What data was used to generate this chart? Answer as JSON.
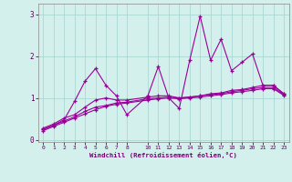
{
  "xlabel": "Windchill (Refroidissement éolien,°C)",
  "bg_color": "#d4f0ec",
  "line_color": "#990099",
  "grid_color": "#aad8d4",
  "xmin": -0.5,
  "xmax": 23.5,
  "ymin": -0.05,
  "ymax": 3.25,
  "yticks": [
    0,
    1,
    2,
    3
  ],
  "xticks": [
    0,
    1,
    2,
    3,
    4,
    5,
    6,
    7,
    8,
    10,
    11,
    12,
    13,
    14,
    15,
    16,
    17,
    18,
    19,
    20,
    21,
    22,
    23
  ],
  "series1_x": [
    0,
    1,
    2,
    3,
    4,
    5,
    6,
    7,
    8,
    10,
    11,
    12,
    13,
    14,
    15,
    16,
    17,
    18,
    19,
    20,
    21,
    22,
    23
  ],
  "series1_y": [
    0.25,
    0.35,
    0.48,
    0.92,
    1.4,
    1.7,
    1.3,
    1.05,
    0.6,
    1.05,
    1.75,
    1.0,
    0.75,
    1.9,
    2.95,
    1.9,
    2.4,
    1.65,
    1.85,
    2.05,
    1.3,
    1.3,
    1.1
  ],
  "series2_x": [
    0,
    1,
    2,
    3,
    4,
    5,
    6,
    7,
    8,
    10,
    11,
    12,
    13,
    14,
    15,
    16,
    17,
    18,
    19,
    20,
    21,
    22,
    23
  ],
  "series2_y": [
    0.28,
    0.38,
    0.52,
    0.6,
    0.78,
    0.95,
    1.0,
    0.95,
    0.95,
    1.02,
    1.05,
    1.05,
    1.0,
    1.02,
    1.05,
    1.1,
    1.12,
    1.18,
    1.2,
    1.25,
    1.3,
    1.3,
    1.1
  ],
  "series3_x": [
    0,
    1,
    2,
    3,
    4,
    5,
    6,
    7,
    8,
    10,
    11,
    12,
    13,
    14,
    15,
    16,
    17,
    18,
    19,
    20,
    21,
    22,
    23
  ],
  "series3_y": [
    0.25,
    0.35,
    0.45,
    0.55,
    0.68,
    0.78,
    0.82,
    0.88,
    0.9,
    0.98,
    1.0,
    1.02,
    1.0,
    1.02,
    1.05,
    1.08,
    1.1,
    1.15,
    1.18,
    1.22,
    1.25,
    1.25,
    1.08
  ],
  "series4_x": [
    0,
    1,
    2,
    3,
    4,
    5,
    6,
    7,
    8,
    10,
    11,
    12,
    13,
    14,
    15,
    16,
    17,
    18,
    19,
    20,
    21,
    22,
    23
  ],
  "series4_y": [
    0.22,
    0.32,
    0.42,
    0.52,
    0.62,
    0.72,
    0.8,
    0.85,
    0.88,
    0.95,
    0.98,
    1.0,
    0.98,
    1.0,
    1.02,
    1.05,
    1.08,
    1.12,
    1.15,
    1.18,
    1.22,
    1.22,
    1.06
  ]
}
